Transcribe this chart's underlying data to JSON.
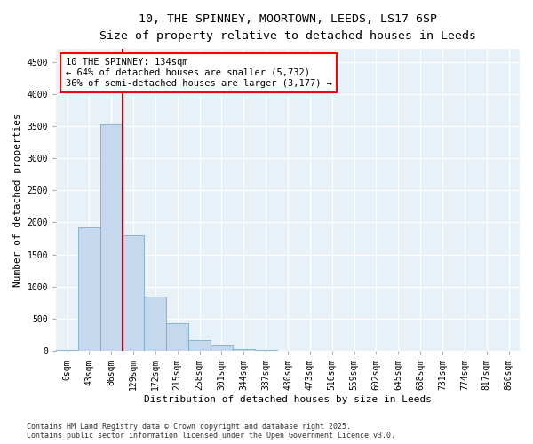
{
  "title1": "10, THE SPINNEY, MOORTOWN, LEEDS, LS17 6SP",
  "title2": "Size of property relative to detached houses in Leeds",
  "xlabel": "Distribution of detached houses by size in Leeds",
  "ylabel": "Number of detached properties",
  "bar_labels": [
    "0sqm",
    "43sqm",
    "86sqm",
    "129sqm",
    "172sqm",
    "215sqm",
    "258sqm",
    "301sqm",
    "344sqm",
    "387sqm",
    "430sqm",
    "473sqm",
    "516sqm",
    "559sqm",
    "602sqm",
    "645sqm",
    "688sqm",
    "731sqm",
    "774sqm",
    "817sqm",
    "860sqm"
  ],
  "bar_values": [
    10,
    1930,
    3520,
    1800,
    850,
    430,
    170,
    80,
    35,
    15,
    8,
    4,
    2,
    1,
    1,
    0,
    0,
    0,
    0,
    0,
    0
  ],
  "bar_color": "#c5d8ee",
  "bar_edge_color": "#7aabcc",
  "vline_x_idx": 2,
  "vline_x_offset": 0.5,
  "vline_color": "#cc0000",
  "annotation_text": "10 THE SPINNEY: 134sqm\n← 64% of detached houses are smaller (5,732)\n36% of semi-detached houses are larger (3,177) →",
  "ylim": [
    0,
    4700
  ],
  "yticks": [
    0,
    500,
    1000,
    1500,
    2000,
    2500,
    3000,
    3500,
    4000,
    4500
  ],
  "bg_color": "#e8f0f8",
  "grid_color": "white",
  "footer": "Contains HM Land Registry data © Crown copyright and database right 2025.\nContains public sector information licensed under the Open Government Licence v3.0.",
  "title1_fontsize": 9.5,
  "title2_fontsize": 8.5,
  "xlabel_fontsize": 8,
  "ylabel_fontsize": 8,
  "tick_fontsize": 7,
  "annot_fontsize": 7.5,
  "footer_fontsize": 6
}
